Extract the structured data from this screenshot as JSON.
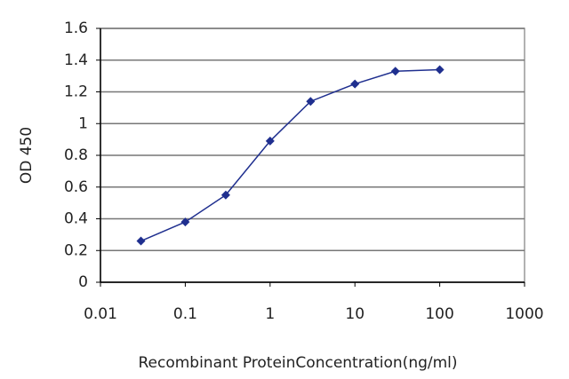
{
  "chart_data": {
    "type": "line",
    "x_label": "Recombinant ProteinConcentration(ng/ml)",
    "y_label": "OD 450",
    "x": [
      0.03,
      0.1,
      0.3,
      1,
      3,
      10,
      30,
      100
    ],
    "series": [
      {
        "name": "OD",
        "color": "#1f2f8f",
        "values": [
          0.26,
          0.38,
          0.55,
          0.89,
          1.14,
          1.25,
          1.33,
          1.34
        ]
      }
    ],
    "xscale": "log",
    "xlim": [
      0.01,
      1000
    ],
    "xticks": [
      0.01,
      0.1,
      1,
      10,
      100,
      1000
    ],
    "ylim": [
      0,
      1.6
    ],
    "yticks": [
      0,
      0.2,
      0.4,
      0.6,
      0.8,
      1,
      1.2,
      1.4,
      1.6
    ],
    "grid": true
  }
}
